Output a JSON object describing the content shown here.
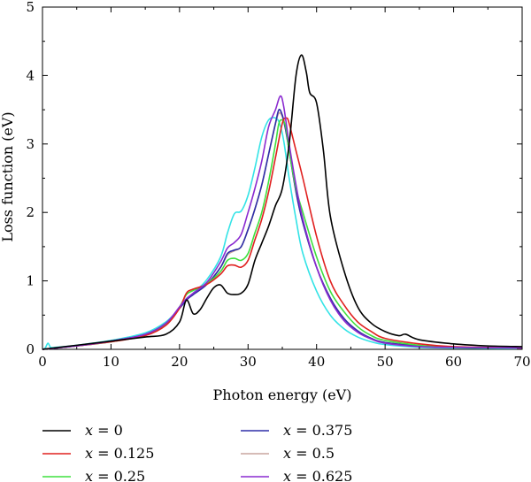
{
  "chart_data": {
    "type": "line",
    "xlabel": "Photon energy (eV)",
    "ylabel": "Loss function (eV)",
    "xlim": [
      0,
      70
    ],
    "ylim": [
      0,
      5
    ],
    "xticks": [
      "0",
      "10",
      "20",
      "30",
      "40",
      "50",
      "60",
      "70"
    ],
    "yticks": [
      "0",
      "1",
      "2",
      "3",
      "4",
      "5"
    ],
    "grid": false,
    "legend_position": "bottom",
    "series": [
      {
        "name": "x = 0",
        "var": "x",
        "value_label": " = 0",
        "color": "#000000",
        "x": [
          0,
          5,
          10,
          15,
          18,
          20,
          21,
          22,
          23,
          24,
          25,
          26,
          27,
          28,
          29,
          30,
          31,
          32,
          33,
          34,
          35,
          36,
          37,
          37.8,
          38.5,
          39,
          40,
          41,
          42,
          44,
          46,
          48,
          50,
          52,
          53,
          55,
          60,
          65,
          70
        ],
        "y": [
          0,
          0.06,
          0.12,
          0.18,
          0.22,
          0.4,
          0.72,
          0.52,
          0.58,
          0.75,
          0.9,
          0.94,
          0.82,
          0.8,
          0.82,
          0.95,
          1.3,
          1.55,
          1.8,
          2.1,
          2.35,
          3.0,
          4.0,
          4.3,
          4.05,
          3.75,
          3.6,
          2.9,
          1.95,
          1.15,
          0.62,
          0.38,
          0.26,
          0.2,
          0.22,
          0.14,
          0.08,
          0.05,
          0.04
        ]
      },
      {
        "name": "x = 0.125",
        "var": "x",
        "value_label": " = 0.125",
        "color": "#e0201f",
        "x": [
          0,
          5,
          10,
          15,
          18,
          20,
          21,
          22,
          24,
          26,
          27,
          28,
          29,
          30,
          31,
          32,
          33,
          34,
          35,
          35.6,
          36,
          37,
          38,
          40,
          42,
          44,
          46,
          48,
          50,
          55,
          60,
          70
        ],
        "y": [
          0,
          0.05,
          0.11,
          0.2,
          0.35,
          0.6,
          0.82,
          0.88,
          0.95,
          1.1,
          1.22,
          1.23,
          1.2,
          1.3,
          1.6,
          1.9,
          2.3,
          2.8,
          3.3,
          3.38,
          3.3,
          2.9,
          2.5,
          1.65,
          1.0,
          0.65,
          0.4,
          0.26,
          0.16,
          0.08,
          0.04,
          0.02
        ]
      },
      {
        "name": "x = 0.25",
        "var": "x",
        "value_label": " = 0.25",
        "color": "#3ee03e",
        "x": [
          0,
          5,
          10,
          15,
          18,
          20,
          21,
          22,
          24,
          26,
          27,
          28,
          29,
          30,
          31,
          32,
          33,
          34,
          34.5,
          35,
          35.5,
          36,
          37,
          38,
          40,
          42,
          44,
          46,
          48,
          50,
          55,
          60,
          70
        ],
        "y": [
          0,
          0.05,
          0.11,
          0.21,
          0.37,
          0.62,
          0.8,
          0.86,
          0.96,
          1.14,
          1.3,
          1.33,
          1.3,
          1.4,
          1.7,
          2.0,
          2.45,
          3.0,
          3.3,
          3.35,
          3.25,
          2.9,
          2.35,
          2.0,
          1.35,
          0.85,
          0.55,
          0.33,
          0.2,
          0.13,
          0.06,
          0.03,
          0.02
        ]
      },
      {
        "name": "x = 0.375",
        "var": "x",
        "value_label": " = 0.375",
        "color": "#2e2ea8",
        "x": [
          0,
          5,
          10,
          15,
          18,
          20,
          21,
          22,
          24,
          26,
          27,
          28,
          29,
          30,
          31,
          32,
          33,
          34,
          34.5,
          35,
          35.5,
          36,
          37,
          38,
          40,
          42,
          44,
          46,
          48,
          50,
          55,
          60,
          70
        ],
        "y": [
          0,
          0.05,
          0.12,
          0.22,
          0.38,
          0.6,
          0.72,
          0.8,
          0.95,
          1.2,
          1.4,
          1.45,
          1.5,
          1.75,
          2.05,
          2.4,
          2.85,
          3.3,
          3.5,
          3.42,
          3.2,
          2.9,
          2.3,
          1.85,
          1.2,
          0.75,
          0.45,
          0.27,
          0.16,
          0.1,
          0.05,
          0.03,
          0.02
        ]
      },
      {
        "name": "x = 0.5",
        "var": "x",
        "value_label": " = 0.5",
        "color": "#c9a59f",
        "x": [
          0,
          5,
          10,
          15,
          18,
          20,
          21,
          22,
          24,
          26,
          27,
          28,
          29,
          30,
          31,
          32,
          33,
          34,
          34.5,
          35,
          35.5,
          36,
          37,
          38,
          40,
          42,
          44,
          46,
          48,
          50,
          55,
          60,
          70
        ],
        "y": [
          0,
          0.05,
          0.12,
          0.22,
          0.38,
          0.6,
          0.73,
          0.8,
          0.95,
          1.2,
          1.38,
          1.44,
          1.5,
          1.75,
          2.05,
          2.4,
          2.85,
          3.3,
          3.45,
          3.4,
          3.2,
          2.9,
          2.3,
          1.85,
          1.2,
          0.75,
          0.45,
          0.27,
          0.16,
          0.1,
          0.05,
          0.03,
          0.02
        ]
      },
      {
        "name": "x = 0.625",
        "var": "x",
        "value_label": " = 0.625",
        "color": "#8a2ad0",
        "x": [
          0,
          5,
          10,
          15,
          18,
          20,
          21,
          22,
          24,
          26,
          27,
          28,
          29,
          30,
          31,
          32,
          33,
          34,
          34.7,
          35.2,
          36,
          37,
          38,
          40,
          42,
          44,
          46,
          48,
          50,
          55,
          60,
          70
        ],
        "y": [
          0,
          0.05,
          0.12,
          0.22,
          0.38,
          0.62,
          0.74,
          0.82,
          0.98,
          1.28,
          1.48,
          1.56,
          1.68,
          2.0,
          2.35,
          2.75,
          3.25,
          3.5,
          3.7,
          3.55,
          3.0,
          2.4,
          1.9,
          1.2,
          0.72,
          0.42,
          0.25,
          0.15,
          0.09,
          0.04,
          0.03,
          0.02
        ]
      },
      {
        "name": "",
        "var": "",
        "value_label": "",
        "color": "#33e3e6",
        "x": [
          0,
          0.4,
          0.8,
          1.2,
          2,
          5,
          10,
          15,
          18,
          20,
          21,
          22,
          24,
          26,
          27,
          28,
          29,
          30,
          31,
          32,
          33,
          34,
          34.6,
          35.2,
          36,
          37,
          38,
          40,
          42,
          44,
          46,
          48,
          50,
          55,
          60,
          70
        ],
        "y": [
          0,
          0.02,
          0.09,
          0.03,
          0.03,
          0.06,
          0.13,
          0.24,
          0.4,
          0.6,
          0.72,
          0.82,
          1.02,
          1.35,
          1.7,
          1.98,
          2.02,
          2.25,
          2.65,
          3.1,
          3.35,
          3.38,
          3.3,
          3.05,
          2.5,
          1.9,
          1.4,
          0.85,
          0.5,
          0.3,
          0.18,
          0.11,
          0.07,
          0.03,
          0.02,
          0.01
        ]
      }
    ]
  }
}
